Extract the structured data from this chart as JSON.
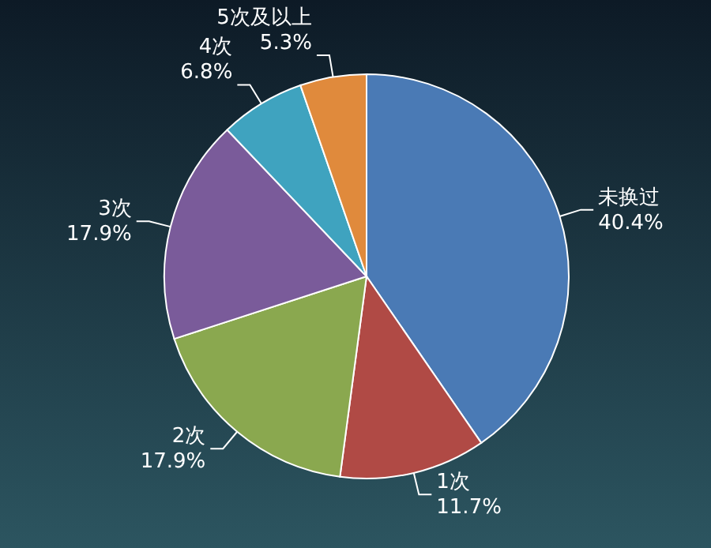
{
  "chart_data": {
    "type": "pie",
    "categories": [
      "未换过",
      "1次",
      "2次",
      "3次",
      "4次",
      "5次及以上"
    ],
    "values": [
      40.4,
      11.7,
      17.9,
      17.9,
      6.8,
      5.3
    ],
    "value_labels": [
      "40.4%",
      "11.7%",
      "17.9%",
      "17.9%",
      "6.8%",
      "5.3%"
    ],
    "colors": [
      "#4a7ab5",
      "#b04a45",
      "#8aa84f",
      "#7a5b9a",
      "#3fa3bf",
      "#e08a3c"
    ]
  }
}
